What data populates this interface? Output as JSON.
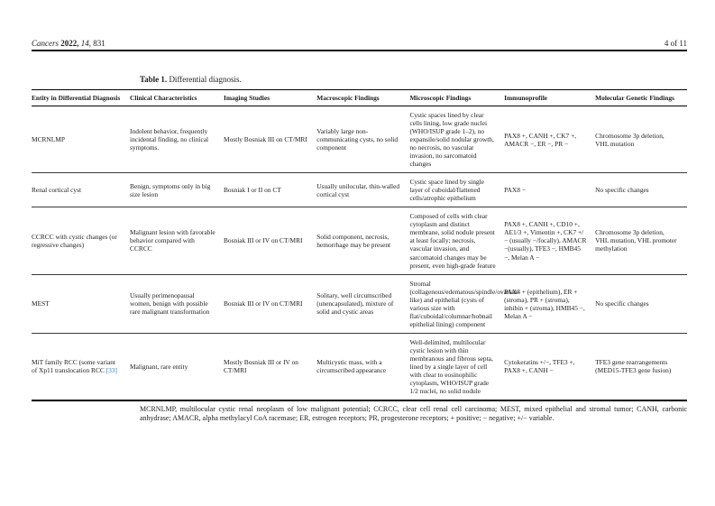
{
  "running_head": {
    "journal": "Cancers",
    "year": "2022,",
    "volume": "14,",
    "article": "831",
    "page_label": "4 of 11"
  },
  "table": {
    "caption_label": "Table 1.",
    "caption_text": "Differential diagnosis.",
    "columns": [
      "Entity in Differential Diagnosis",
      "Clinical Characteristics",
      "Imaging Studies",
      "Macroscopic Findings",
      "Microscopic Findings",
      "Immunoprofile",
      "Molecular Genetic Findings"
    ],
    "rows": [
      {
        "entity": "MCRNLMP",
        "entity_citation": "",
        "clinical": "Indolent behavior, frequently incidental finding, no clinical symptoms.",
        "imaging": "Mostly Bosniak III on CT/MRI",
        "macroscopic": "Variably large non-communicating cysts, no solid component",
        "microscopic": "Cystic spaces lined by clear cells lining, low grade nuclei (WHO/ISUP grade 1–2), no expansile/solid nodular growth, no necrosis, no vascular invasion, no sarcomatoid changes",
        "immunoprofile": "PAX8 +, CANH +, CK7 +, AMACR −, ER −, PR −",
        "molecular": "Chromosome 3p deletion, VHL mutation"
      },
      {
        "entity": "Renal cortical cyst",
        "entity_citation": "",
        "clinical": "Benign, symptoms only in big size lesion",
        "imaging": "Bosniak I or II on CT",
        "macroscopic": "Usually unilocular, thin-walled cortical cyst",
        "microscopic": "Cystic space lined by single layer of cuboidal/flattened cells/atrophic epithelium",
        "immunoprofile": "PAX8 −",
        "molecular": "No specific changes"
      },
      {
        "entity": "CCRCC with cystic changes (or regressive changes)",
        "entity_citation": "",
        "clinical": "Malignant lesion with favorable behavior compared with CCRCC",
        "imaging": "Bosniak III or IV on CT/MRI",
        "macroscopic": "Solid component, necrosis, hemorrhage may be present",
        "microscopic": "Composed of cells with clear cytoplasm and distinct membrane, solid nodule present at least focally; necrosis, vascular invasion, and sarcomatoid changes may be present, even high-grade feature",
        "immunoprofile": "PAX8 +, CANH +, CD10 +, AE1/3 +, Vimentin +, CK7 +/− (usually −/focally), AMACR −(usually), TFE3 −, HMB45 −, Melan A −",
        "molecular": "Chromosome 3p deletion, VHL mutation, VHL promoter methylation"
      },
      {
        "entity": "MEST",
        "entity_citation": "",
        "clinical": "Usually perimenopausal women, benign with possible rare malignant transformation",
        "imaging": "Bosniak III or IV on CT/MRI",
        "macroscopic": "Solitary, well circumscribed (unencapsulated), mixture of solid and cystic areas",
        "microscopic": "Stromal (collagenous/edematous/spindle/ovarian-like) and epithelial (cysts of various size with flat/cuboidal/columnar/hobnail epithelial lining) component",
        "immunoprofile": "PAX8 + (epithelium), ER + (stroma), PR + (stroma), inhibin + (stroma), HMB45 −, Melan A −",
        "molecular": "No specific changes"
      },
      {
        "entity": "MiT family RCC (some variant of Xp11 translocation RCC ",
        "entity_citation": "[33]",
        "clinical": "Malignant, rare entity",
        "imaging": "Mostly Bosniak III or IV on CT/MRI",
        "macroscopic": "Multicystic mass, with a circumscribed appearance",
        "microscopic": "Well-delimited, multilocular cystic lesion with thin membranous and fibrous septa, lined by a single layer of cell with clear to eosinophilic cytoplasm, WHO/ISUP grade 1/2 nuclei, no solid nodule",
        "immunoprofile": "Cytokeratins +/−, TFE3 +, PAX8 +, CANH −",
        "molecular": "TFE3 gene rearrangements (MED15-TFE3 gene fusion)"
      }
    ],
    "footnote": "MCRNLMP, multilocular cystic renal neoplasm of low malignant potential; CCRCC, clear cell renal cell carcinoma; MEST, mixed epithelial and stromal tumor; CANH, carbonic anhydrase; AMACR, alpha methylacyl CoA racemase; ER, estrogen receptors; PR, progesterone receptors; + positive; − negative; +/− variable."
  },
  "colors": {
    "citation_link": "#3a78b0"
  }
}
